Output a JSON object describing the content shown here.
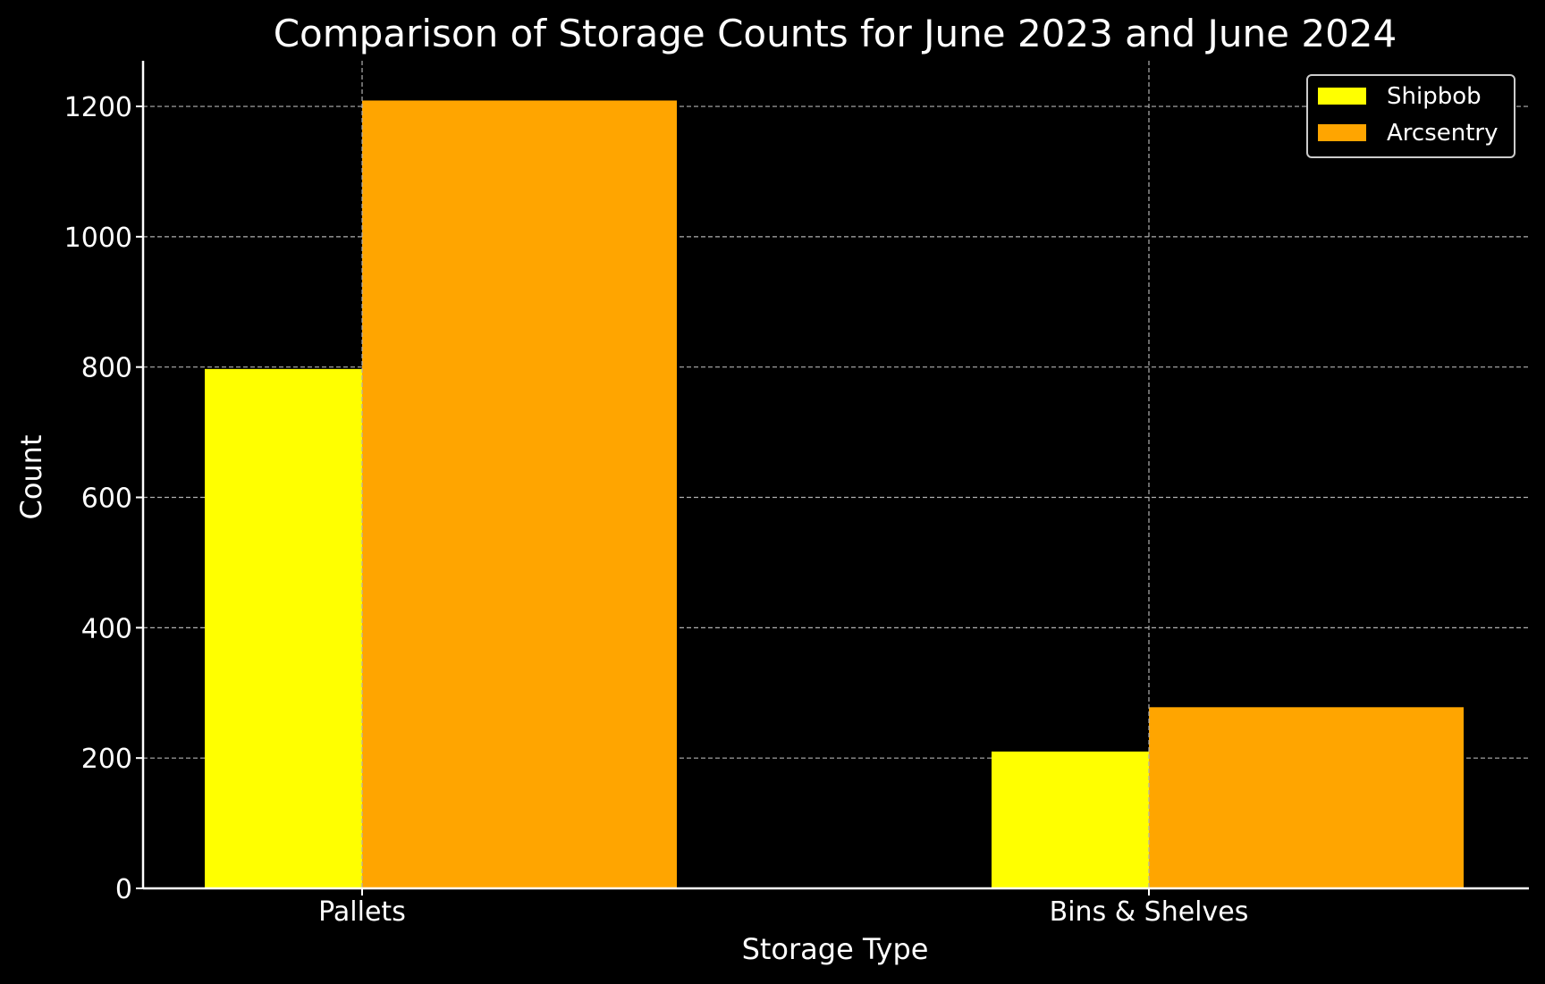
{
  "chart_data": {
    "type": "bar",
    "title": "Comparison of Storage Counts for June 2023 and June 2024",
    "xlabel": "Storage Type",
    "ylabel": "Count",
    "categories": [
      "Pallets",
      "Bins & Shelves"
    ],
    "series": [
      {
        "name": "Shipbob",
        "values": [
          797,
          210
        ],
        "color": "#ffff00"
      },
      {
        "name": "Arcsentry",
        "values": [
          1209,
          278
        ],
        "color": "#ffa500"
      }
    ],
    "ylim": [
      0,
      1270
    ],
    "yticks": [
      "0",
      "200",
      "400",
      "600",
      "800",
      "1000",
      "1200"
    ],
    "grid": true,
    "legend_position": "top-right",
    "background": "#000000",
    "grid_color": "#b0b0b0"
  }
}
